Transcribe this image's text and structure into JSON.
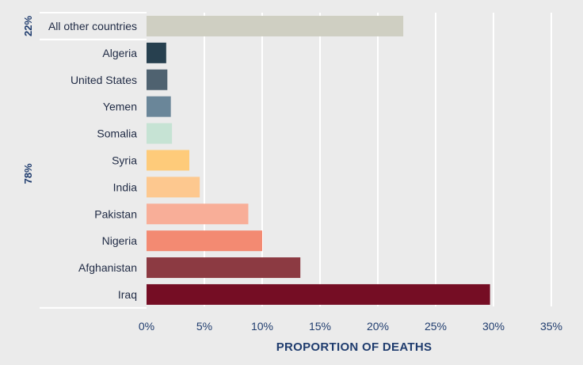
{
  "chart_data": {
    "type": "bar",
    "orientation": "horizontal",
    "categories": [
      "All other countries",
      "Algeria",
      "United States",
      "Yemen",
      "Somalia",
      "Syria",
      "India",
      "Pakistan",
      "Nigeria",
      "Afghanistan",
      "Iraq"
    ],
    "values": [
      22.2,
      1.7,
      1.8,
      2.1,
      2.2,
      3.7,
      4.6,
      8.8,
      10.0,
      13.3,
      29.7
    ],
    "colors": [
      "#cfcfc2",
      "#27404f",
      "#4f6270",
      "#6a8699",
      "#c6e3d4",
      "#fecb7a",
      "#fdc88f",
      "#f8ae98",
      "#f38a72",
      "#8c3a42",
      "#750d24"
    ],
    "xlim": [
      0,
      35
    ],
    "xticks": [
      "0%",
      "5%",
      "10%",
      "15%",
      "20%",
      "25%",
      "30%",
      "35%"
    ],
    "xlabel": "PROPORTION OF DEATHS",
    "ylabel": "",
    "title": "",
    "grid": "vertical",
    "groups": [
      {
        "label": "22%",
        "categories": [
          "All other countries"
        ]
      },
      {
        "label": "78%",
        "categories": [
          "Algeria",
          "United States",
          "Yemen",
          "Somalia",
          "Syria",
          "India",
          "Pakistan",
          "Nigeria",
          "Afghanistan",
          "Iraq"
        ]
      }
    ]
  }
}
